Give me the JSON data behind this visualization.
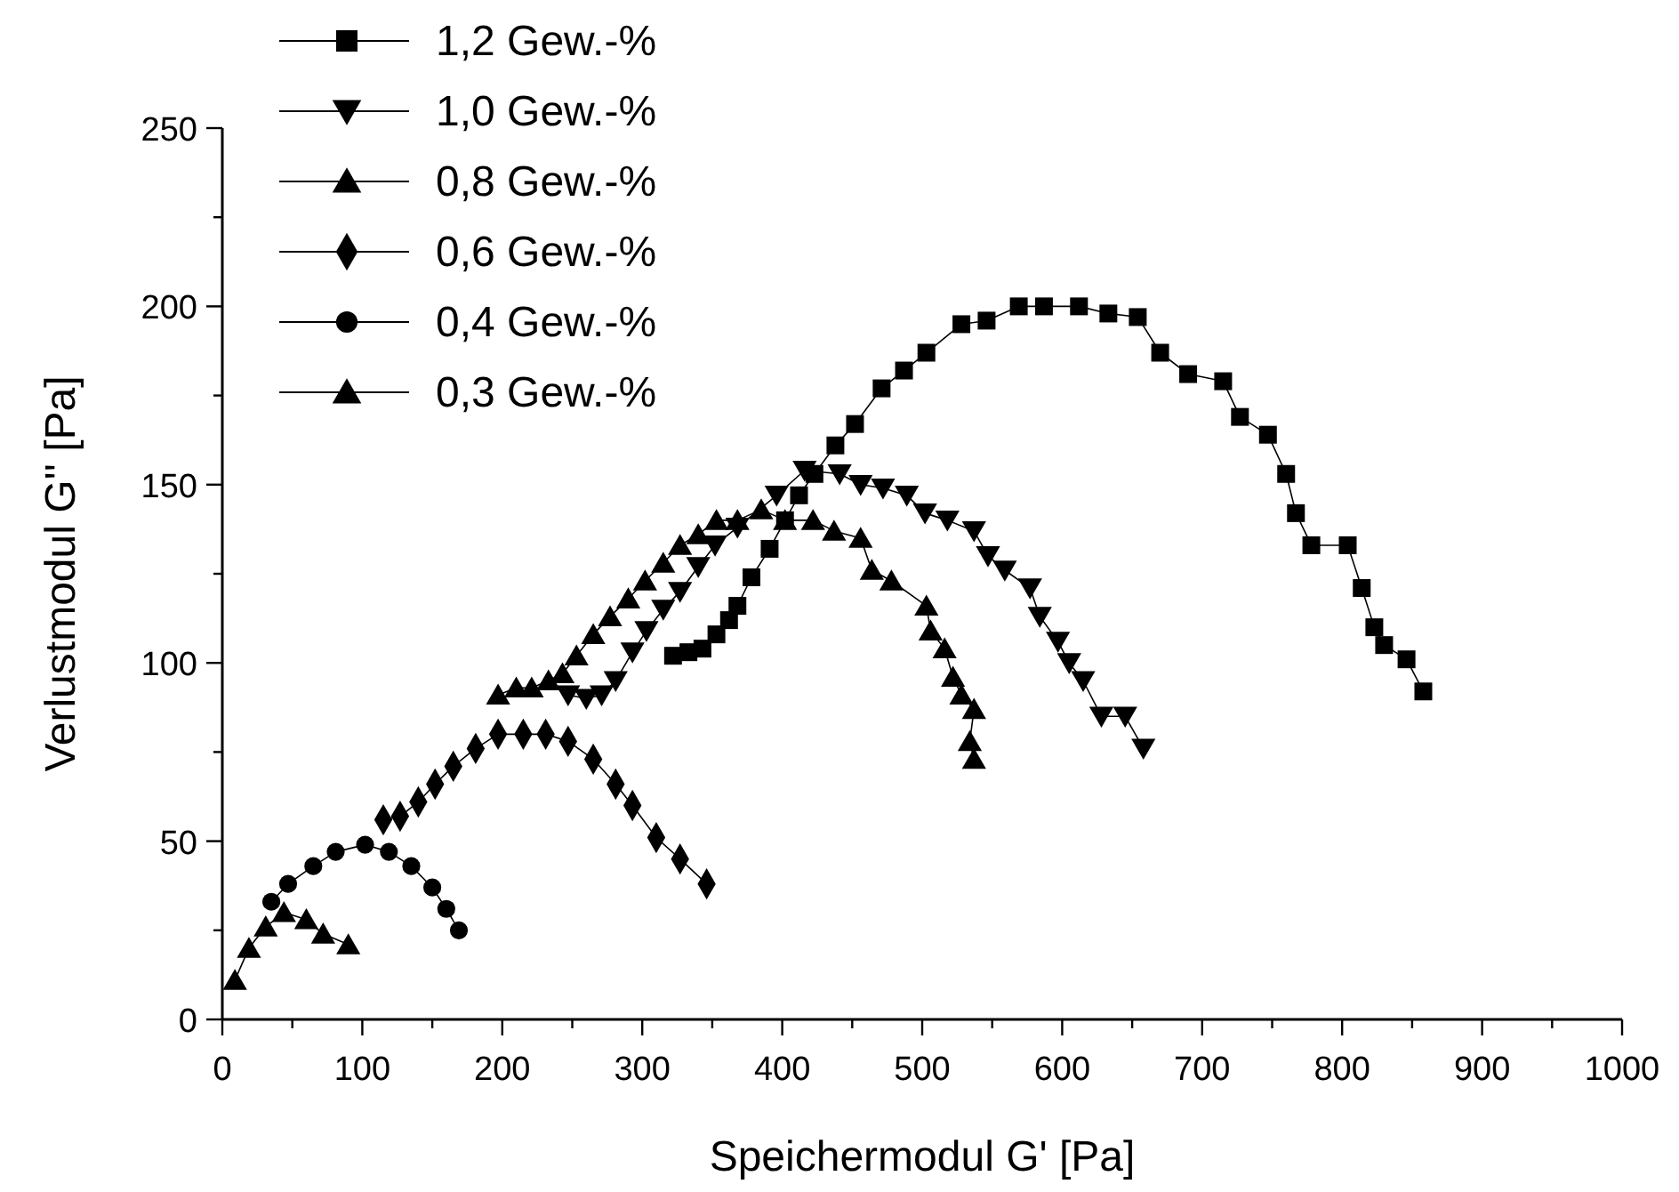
{
  "chart_data": {
    "type": "line",
    "xlabel": "Speichermodul G' [Pa]",
    "ylabel": "Verlustmodul G'' [Pa]",
    "xlim": [
      0,
      1000
    ],
    "ylim": [
      0,
      250
    ],
    "xticks": [
      0,
      {
        "value": 50,
        "label": null
      },
      100,
      {
        "value": 150,
        "label": null
      },
      200,
      {
        "value": 250,
        "label": null
      },
      300,
      {
        "value": 350,
        "label": null
      },
      400,
      {
        "value": 450,
        "label": null
      },
      500,
      {
        "value": 550,
        "label": null
      },
      600,
      {
        "value": 650,
        "label": null
      },
      700,
      {
        "value": 750,
        "label": null
      },
      800,
      {
        "value": 850,
        "label": null
      },
      900,
      {
        "value": 950,
        "label": null
      },
      1000
    ],
    "yticks": [
      0,
      {
        "value": 25,
        "label": null
      },
      50,
      {
        "value": 75,
        "label": null
      },
      100,
      {
        "value": 125,
        "label": null
      },
      150,
      {
        "value": 175,
        "label": null
      },
      200,
      {
        "value": 225,
        "label": null
      },
      250
    ],
    "grid": false,
    "legend": "top left",
    "line_style": "solid",
    "series": [
      {
        "name": "1,2 Gew.-%",
        "color": "#000000",
        "marker": "square",
        "x": [
          322,
          333,
          343,
          353,
          362,
          368,
          378,
          391,
          402,
          412,
          423,
          438,
          452,
          471,
          487,
          503,
          528,
          546,
          569,
          587,
          612,
          633,
          654,
          670,
          690,
          715,
          727,
          747,
          760,
          767,
          778,
          804,
          814,
          823,
          830,
          846,
          858
        ],
        "values": [
          102,
          103,
          104,
          108,
          112,
          116,
          124,
          132,
          140,
          147,
          153,
          161,
          167,
          177,
          182,
          187,
          195,
          196,
          200,
          200,
          200,
          198,
          197,
          187,
          181,
          179,
          169,
          164,
          153,
          142,
          133,
          133,
          121,
          110,
          105,
          101,
          92
        ]
      },
      {
        "name": "1,0 Gew.-%",
        "color": "#000000",
        "marker": "triangle-down",
        "x": [
          247,
          260,
          271,
          281,
          293,
          303,
          315,
          327,
          340,
          352,
          368,
          396,
          416,
          441,
          456,
          472,
          489,
          502,
          518,
          537,
          547,
          559,
          577,
          584,
          597,
          605,
          615,
          628,
          645,
          658
        ],
        "values": [
          91,
          90,
          91,
          95,
          103,
          109,
          115,
          120,
          127,
          133,
          138,
          147,
          154,
          153,
          150,
          149,
          147,
          142,
          140,
          137,
          130,
          126,
          121,
          113,
          106,
          100,
          95,
          85,
          85,
          76
        ]
      },
      {
        "name": "0,8 Gew.-%",
        "color": "#000000",
        "marker": "triangle",
        "x": [
          197,
          210,
          221,
          233,
          243,
          253,
          265,
          277,
          290,
          302,
          315,
          327,
          340,
          353,
          368,
          385,
          402,
          422,
          437,
          456,
          464,
          478,
          503,
          506,
          516,
          522,
          528,
          537,
          534,
          537
        ],
        "values": [
          91,
          93,
          93,
          95,
          97,
          102,
          108,
          113,
          118,
          123,
          128,
          133,
          136,
          140,
          140,
          143,
          140,
          140,
          137,
          135,
          126,
          123,
          116,
          109,
          104,
          96,
          91,
          87,
          78,
          73
        ]
      },
      {
        "name": "0,6 Gew.-%",
        "color": "#000000",
        "marker": "diamond",
        "x": [
          115,
          127,
          140,
          152,
          165,
          181,
          197,
          215,
          231,
          247,
          265,
          281,
          293,
          310,
          327,
          346
        ],
        "values": [
          56,
          57,
          61,
          66,
          71,
          76,
          80,
          80,
          80,
          78,
          73,
          66,
          60,
          51,
          45,
          38
        ]
      },
      {
        "name": "0,4 Gew.-%",
        "color": "#000000",
        "marker": "circle",
        "x": [
          35,
          47,
          65,
          81,
          102,
          119,
          135,
          150,
          160,
          169
        ],
        "values": [
          33,
          38,
          43,
          47,
          49,
          47,
          43,
          37,
          31,
          25
        ]
      },
      {
        "name": "0,3 Gew.-%",
        "color": "#000000",
        "marker": "triangle",
        "x": [
          9,
          19,
          31,
          44,
          60,
          72,
          90
        ],
        "values": [
          11,
          20,
          26,
          30,
          28,
          24,
          21
        ]
      }
    ]
  }
}
